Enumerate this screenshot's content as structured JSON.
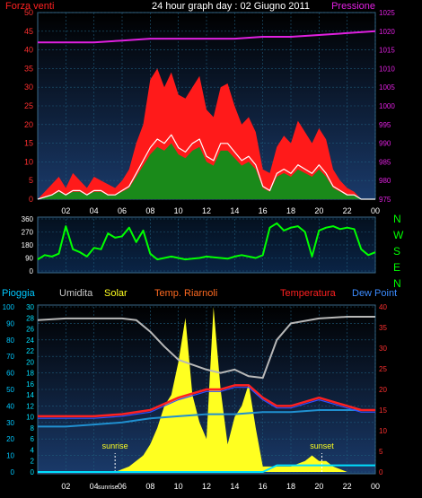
{
  "header": {
    "title": "24 hour graph day : 02 Giugno 2011",
    "wind_label": "Forza venti",
    "pressure_label": "Pressione"
  },
  "colors": {
    "background": "#000000",
    "plot_top": "#000000",
    "plot_bottom": "#1a3a6a",
    "grid": "#1e5a7a",
    "wind_gust": "#ff1a1a",
    "wind_avg": "#1a8a1a",
    "wind_line": "#ffffff",
    "pressure": "#e020e0",
    "direction": "#00ff00",
    "humidity": "#b8b8b8",
    "solar": "#ffff20",
    "temp_heat": "#ff2020",
    "temperature": "#3050ff",
    "dew_point": "#2090d0",
    "rain": "#00e0ff"
  },
  "chart_data": [
    {
      "type": "line",
      "title": "24 hour graph day : 02 Giugno 2011",
      "x_ticks": [
        "02",
        "04",
        "06",
        "08",
        "10",
        "12",
        "14",
        "16",
        "18",
        "20",
        "22",
        "00"
      ],
      "y_left": {
        "label": "Forza venti",
        "ticks": [
          "0",
          "5",
          "10",
          "15",
          "20",
          "25",
          "30",
          "35",
          "40",
          "45",
          "50"
        ],
        "range": [
          0,
          50
        ]
      },
      "y_right": {
        "label": "Pressione",
        "ticks": [
          "975",
          "980",
          "985",
          "990",
          "995",
          "1000",
          "1005",
          "1010",
          "1015",
          "1020",
          "1025"
        ],
        "range": [
          975,
          1025
        ]
      },
      "series": [
        {
          "name": "gust",
          "axis": "left",
          "x": [
            0,
            1,
            1.5,
            2,
            2.5,
            3,
            3.5,
            4,
            4.5,
            5,
            5.5,
            6,
            6.5,
            7,
            7.5,
            8,
            8.5,
            9,
            9.5,
            10,
            10.5,
            11,
            11.5,
            12,
            12.5,
            13,
            13.5,
            14,
            14.5,
            15,
            15.5,
            16,
            16.5,
            17,
            17.5,
            18,
            18.5,
            19,
            19.5,
            20,
            20.5,
            21,
            21.5,
            22,
            22.5,
            23,
            23.5,
            24
          ],
          "y": [
            0,
            4,
            6,
            3,
            7,
            5,
            3,
            6,
            5,
            4,
            3,
            5,
            8,
            15,
            20,
            32,
            35,
            30,
            34,
            28,
            27,
            30,
            33,
            24,
            22,
            30,
            31,
            25,
            20,
            22,
            18,
            8,
            7,
            14,
            17,
            15,
            21,
            18,
            15,
            19,
            16,
            8,
            5,
            3,
            2,
            0,
            0,
            0
          ]
        },
        {
          "name": "average",
          "axis": "left",
          "x": [
            0,
            1,
            1.5,
            2,
            2.5,
            3,
            3.5,
            4,
            4.5,
            5,
            5.5,
            6,
            6.5,
            7,
            7.5,
            8,
            8.5,
            9,
            9.5,
            10,
            10.5,
            11,
            11.5,
            12,
            12.5,
            13,
            13.5,
            14,
            14.5,
            15,
            15.5,
            16,
            16.5,
            17,
            17.5,
            18,
            18.5,
            19,
            19.5,
            20,
            20.5,
            21,
            21.5,
            22,
            22.5,
            23,
            23.5,
            24
          ],
          "y": [
            0,
            1,
            2,
            1,
            2,
            2,
            1,
            2,
            2,
            1,
            1,
            2,
            3,
            6,
            9,
            12,
            14,
            13,
            15,
            12,
            11,
            13,
            14,
            10,
            9,
            13,
            13,
            11,
            9,
            10,
            8,
            3,
            2,
            6,
            7,
            6,
            8,
            7,
            6,
            8,
            6,
            3,
            2,
            1,
            1,
            0,
            0,
            0
          ]
        },
        {
          "name": "Pressione",
          "axis": "right",
          "x": [
            0,
            2,
            4,
            6,
            8,
            10,
            12,
            14,
            16,
            18,
            20,
            22,
            24
          ],
          "y": [
            1017,
            1017,
            1017,
            1017.5,
            1018,
            1018,
            1018,
            1018,
            1018.5,
            1018.5,
            1019,
            1019.5,
            1020
          ]
        }
      ]
    },
    {
      "type": "scatter",
      "x_ticks": [
        "02",
        "04",
        "06",
        "08",
        "10",
        "12",
        "14",
        "16",
        "18",
        "20",
        "22",
        "00"
      ],
      "y_left": {
        "ticks": [
          "0",
          "90",
          "180",
          "270",
          "360"
        ],
        "range": [
          0,
          360
        ]
      },
      "y_right": {
        "ticks": [
          "N",
          "W",
          "S",
          "E",
          "N"
        ]
      },
      "series": [
        {
          "name": "direction",
          "x": [
            0,
            0.5,
            1,
            1.5,
            2,
            2.5,
            3,
            3.5,
            4,
            4.5,
            5,
            5.5,
            6,
            6.5,
            7,
            7.5,
            8,
            8.5,
            9,
            9.5,
            10,
            10.5,
            11,
            11.5,
            12,
            12.5,
            13,
            13.5,
            14,
            14.5,
            15,
            15.5,
            16,
            16.5,
            17,
            17.5,
            18,
            18.5,
            19,
            19.5,
            20,
            20.5,
            21,
            21.5,
            22,
            22.5,
            23,
            23.5,
            24
          ],
          "y": [
            80,
            110,
            100,
            120,
            310,
            150,
            130,
            100,
            160,
            150,
            260,
            230,
            240,
            300,
            200,
            280,
            120,
            80,
            90,
            100,
            90,
            80,
            85,
            90,
            100,
            95,
            90,
            85,
            100,
            110,
            100,
            90,
            110,
            300,
            330,
            280,
            300,
            310,
            270,
            100,
            280,
            300,
            310,
            290,
            300,
            290,
            150,
            110,
            130
          ]
        }
      ]
    },
    {
      "type": "line",
      "x_ticks": [
        "02",
        "04",
        "sunrise",
        "06",
        "08",
        "10",
        "12",
        "14",
        "16",
        "18",
        "20",
        "22",
        "00"
      ],
      "y_rain": {
        "label": "Pioggia",
        "ticks": [
          "0",
          "10",
          "20",
          "30",
          "40",
          "50",
          "60",
          "70",
          "80",
          "90",
          "100"
        ],
        "range": [
          0,
          100
        ]
      },
      "y_second": {
        "ticks": [
          "0",
          "2",
          "4",
          "6",
          "8",
          "10",
          "12",
          "14",
          "16",
          "18",
          "20",
          "22",
          "24",
          "26",
          "28",
          "30"
        ],
        "range": [
          0,
          30
        ]
      },
      "y_right": {
        "ticks": [
          "0",
          "5",
          "10",
          "15",
          "20",
          "25",
          "30",
          "35",
          "40"
        ],
        "range": [
          0,
          40
        ]
      },
      "legend": [
        "Umidita",
        "Solar",
        "Temp. Riarnoli",
        "Temperatura",
        "Dew Point"
      ],
      "annotations": [
        "sunrise",
        "sunset"
      ],
      "series": [
        {
          "name": "Umidita",
          "axis": "rain",
          "x": [
            0,
            2,
            4,
            6,
            7,
            8,
            9,
            10,
            11,
            12,
            13,
            14,
            15,
            16,
            17,
            18,
            20,
            22,
            24
          ],
          "y": [
            92,
            93,
            93,
            93,
            92,
            85,
            76,
            68,
            65,
            62,
            60,
            62,
            58,
            57,
            80,
            90,
            93,
            94,
            94
          ]
        },
        {
          "name": "Solar",
          "axis": "second",
          "x": [
            5.5,
            6.5,
            7.5,
            8,
            8.5,
            9,
            9.5,
            10,
            10.5,
            11,
            11.5,
            12,
            12.5,
            13,
            13.5,
            14,
            14.5,
            15,
            15.5,
            16,
            17,
            18,
            19,
            19.5,
            20,
            20.5,
            21,
            22,
            24
          ],
          "y": [
            0,
            1,
            3,
            5,
            8,
            12,
            14,
            20,
            28,
            14,
            9,
            6,
            30,
            15,
            5,
            10,
            12,
            16,
            8,
            1,
            1,
            1,
            2,
            3,
            2,
            2,
            1,
            0,
            0
          ]
        },
        {
          "name": "Temp. Riarnoli",
          "axis": "right",
          "x": [
            0,
            2,
            4,
            6,
            8,
            10,
            12,
            13,
            14,
            15,
            16,
            17,
            18,
            19,
            20,
            21,
            22,
            23,
            24
          ],
          "y": [
            13.5,
            13.5,
            13.5,
            14,
            15,
            18,
            20,
            20,
            21,
            21,
            18,
            16,
            16,
            17,
            18,
            17,
            16,
            15,
            15
          ]
        },
        {
          "name": "Temperatura",
          "axis": "right",
          "x": [
            0,
            2,
            4,
            6,
            8,
            10,
            12,
            13,
            14,
            15,
            16,
            17,
            18,
            19,
            20,
            21,
            22,
            23,
            24
          ],
          "y": [
            13,
            13,
            13,
            13.5,
            14.5,
            17.5,
            19.5,
            19.5,
            20.5,
            20.5,
            17.5,
            15.5,
            15.5,
            16.5,
            17.5,
            16.5,
            15.5,
            14.5,
            14.5
          ]
        },
        {
          "name": "Dew Point",
          "axis": "right",
          "x": [
            0,
            2,
            4,
            6,
            8,
            10,
            12,
            14,
            16,
            18,
            20,
            22,
            24
          ],
          "y": [
            11,
            11,
            11.5,
            12,
            13,
            13.5,
            14,
            14,
            14.5,
            14.5,
            15,
            15,
            15
          ]
        },
        {
          "name": "Pioggia",
          "axis": "rain",
          "x": [
            0,
            2,
            4,
            6,
            8,
            10,
            12,
            14,
            16,
            17,
            18,
            20,
            22,
            23.5,
            24
          ],
          "y": [
            0,
            0,
            0,
            0,
            0,
            0,
            0,
            0,
            0,
            4,
            4,
            4,
            4,
            4,
            4
          ]
        }
      ]
    }
  ]
}
